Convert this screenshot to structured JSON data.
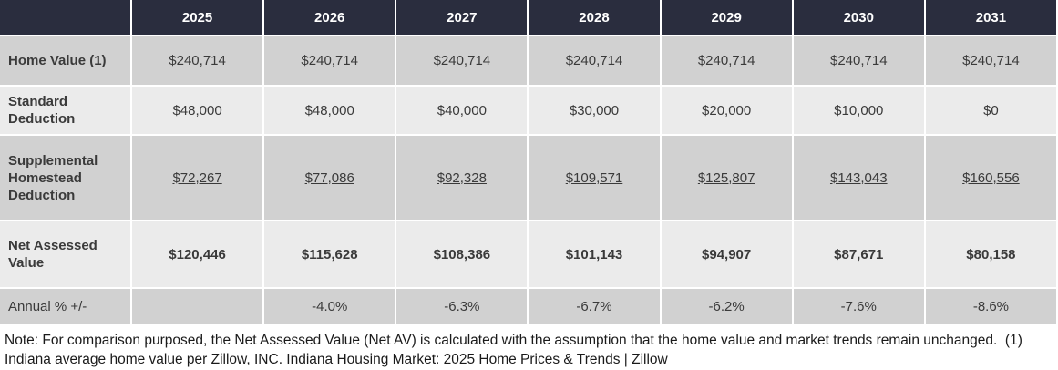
{
  "table": {
    "years": [
      "2025",
      "2026",
      "2027",
      "2028",
      "2029",
      "2030",
      "2031"
    ],
    "rows": [
      {
        "label": "Home Value (1)",
        "values": [
          "$240,714",
          "$240,714",
          "$240,714",
          "$240,714",
          "$240,714",
          "$240,714",
          "$240,714"
        ]
      },
      {
        "label": "Standard Deduction",
        "values": [
          "$48,000",
          "$48,000",
          "$40,000",
          "$30,000",
          "$20,000",
          "$10,000",
          "$0"
        ]
      },
      {
        "label": "Supplemental Homestead Deduction",
        "values": [
          "$72,267",
          "$77,086",
          "$92,328",
          "$109,571",
          "$125,807",
          "$143,043",
          "$160,556"
        ]
      },
      {
        "label": "Net Assessed Value",
        "values": [
          "$120,446",
          "$115,628",
          "$108,386",
          "$101,143",
          "$94,907",
          "$87,671",
          "$80,158"
        ]
      },
      {
        "label": "Annual % +/-",
        "values": [
          "",
          "-4.0%",
          "-6.3%",
          "-6.7%",
          "-6.2%",
          "-7.6%",
          "-8.6%"
        ]
      }
    ]
  },
  "note": "Note: For comparison purposed, the Net Assessed Value (Net AV) is calculated with the assumption that the home value and market trends remain unchanged.  (1) Indiana average home value per Zillow, INC. Indiana Housing Market: 2025 Home Prices & Trends | Zillow"
}
